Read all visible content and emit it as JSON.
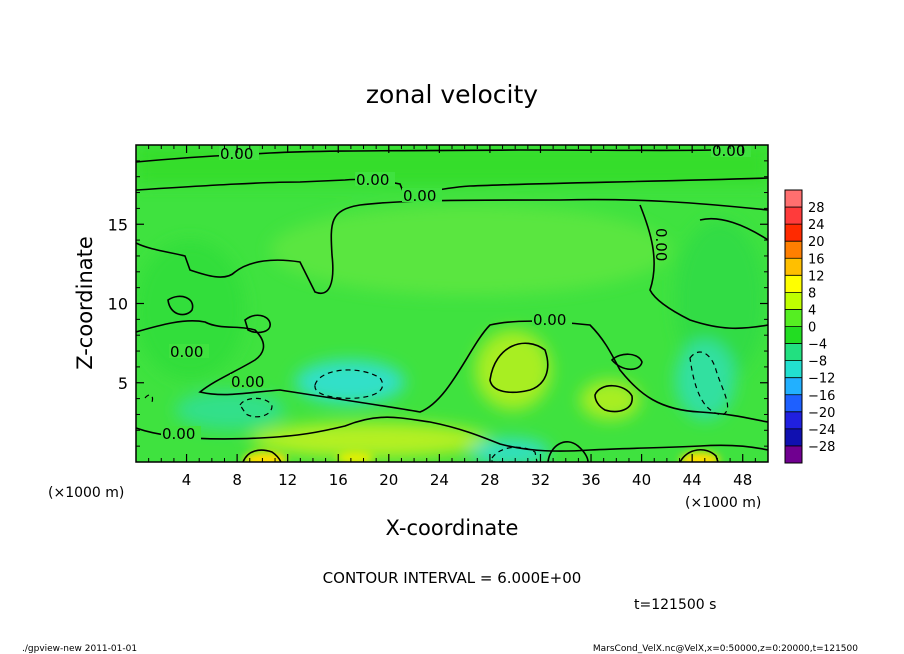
{
  "chart_data": {
    "type": "heatmap",
    "title": "zonal velocity",
    "xlabel": "X-coordinate",
    "ylabel": "Z-coordinate",
    "x_unit_label": "(×1000 m)",
    "x_unit_label_right": "(×1000 m)",
    "xlim": [
      0,
      50
    ],
    "ylim": [
      0,
      20
    ],
    "x_ticks": [
      4,
      8,
      12,
      16,
      20,
      24,
      28,
      32,
      36,
      40,
      44,
      48
    ],
    "y_ticks": [
      5,
      10,
      15
    ],
    "contour_label": "0.00",
    "contour_interval_text": "CONTOUR INTERVAL = 6.000E+00",
    "time_text": "t=121500 s",
    "footer_left": "./gpview-new  2011-01-01",
    "footer_right": "MarsCond_VelX.nc@VelX,x=0:50000,z=0:20000,t=121500",
    "colorbar": {
      "levels": [
        "28",
        "24",
        "20",
        "16",
        "12",
        "8",
        "4",
        "0",
        "−4",
        "−8",
        "−12",
        "−16",
        "−20",
        "−24",
        "−28"
      ],
      "colors": [
        "#ff6f6f",
        "#ff3b3b",
        "#ff2a00",
        "#ff7f00",
        "#ffbf00",
        "#ffff00",
        "#bfff00",
        "#55ee22",
        "#22dd22",
        "#22e080",
        "#22e0d0",
        "#22b0ff",
        "#1e60ff",
        "#2020e0",
        "#1010b0",
        "#700090"
      ]
    },
    "features": [
      {
        "kind": "positive",
        "x": 30.5,
        "z": 6.0,
        "value": 8
      },
      {
        "kind": "positive",
        "x": 38.0,
        "z": 4.0,
        "value": 6
      },
      {
        "kind": "positive",
        "x": 11.0,
        "z": 0.5,
        "value": 12
      },
      {
        "kind": "positive",
        "x": 45.0,
        "z": 0.5,
        "value": 12
      },
      {
        "kind": "negative",
        "x": 16.5,
        "z": 4.5,
        "value": -6
      },
      {
        "kind": "negative",
        "x": 29.5,
        "z": 0.6,
        "value": -8
      },
      {
        "kind": "negative",
        "x": 46.0,
        "z": 5.5,
        "value": -4
      }
    ]
  }
}
